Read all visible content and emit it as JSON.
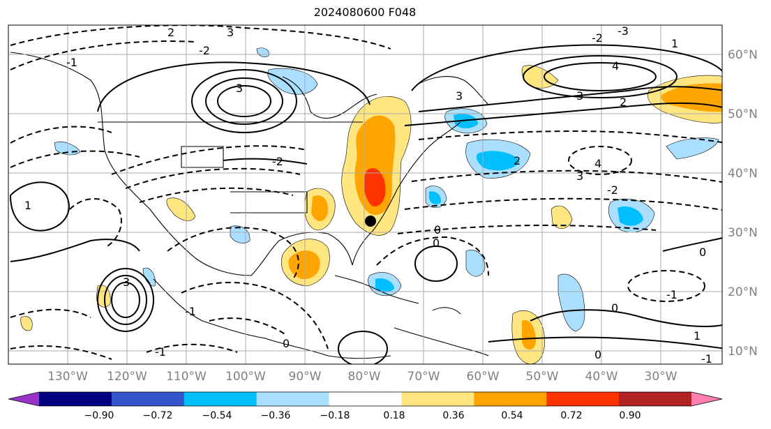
{
  "title": "2024080600 F048",
  "map": {
    "lon_ticks": [
      "130°W",
      "120°W",
      "110°W",
      "100°W",
      "90°W",
      "80°W",
      "70°W",
      "60°W",
      "50°W",
      "40°W",
      "30°W"
    ],
    "lat_ticks": [
      "60°N",
      "50°N",
      "40°N",
      "30°N",
      "20°N",
      "10°N"
    ],
    "contour_labels": [
      "2",
      "3",
      "3",
      "-2",
      "-1",
      "4",
      "3",
      "2",
      "-3",
      "1",
      "-2",
      "3",
      "-2",
      "2",
      "4",
      "3",
      "-2",
      "0",
      "0",
      "0",
      "-1",
      "1",
      "-1",
      "0",
      "-1",
      "1",
      "3",
      "-1",
      "0",
      "0"
    ]
  },
  "colorbar": {
    "ticks": [
      "−0.90",
      "−0.72",
      "−0.54",
      "−0.36",
      "−0.18",
      "0.18",
      "0.36",
      "0.54",
      "0.72",
      "0.90"
    ],
    "colors": [
      "#9933cc",
      "#000080",
      "#3355cc",
      "#00bfff",
      "#aadfff",
      "#ffffff",
      "#ffe680",
      "#ffa500",
      "#ff3300",
      "#b22222",
      "#ff80b0"
    ],
    "ext_min_color": "#9933cc",
    "ext_max_color": "#ff80b0"
  },
  "marker": {
    "label": "storm-center",
    "color": "#000000"
  }
}
